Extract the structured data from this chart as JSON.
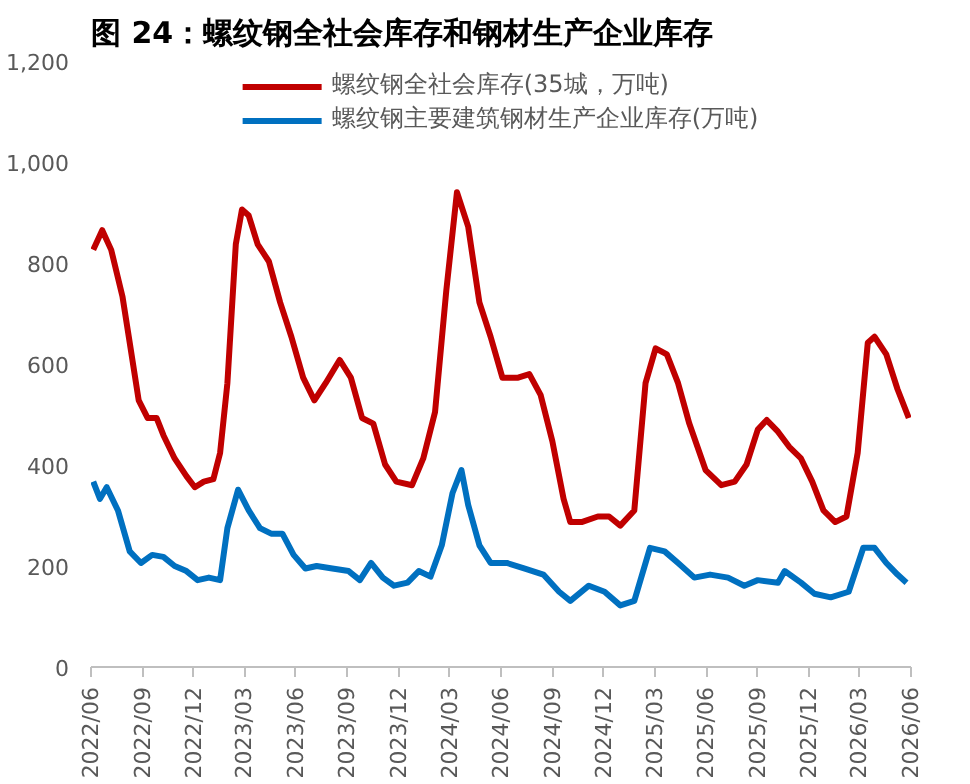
{
  "chart_data": {
    "type": "line",
    "title": "图 24：螺纹钢全社会库存和钢材生产企业库存",
    "xlim": [
      "2022-06-01",
      "2026-06-01"
    ],
    "xticks": [
      {
        "value": "2022-06-01",
        "label": "2022/06"
      },
      {
        "value": "2022-09-01",
        "label": "2022/09"
      },
      {
        "value": "2022-12-01",
        "label": "2022/12"
      },
      {
        "value": "2023-03-01",
        "label": "2023/03"
      },
      {
        "value": "2023-06-01",
        "label": "2023/06"
      },
      {
        "value": "2023-09-01",
        "label": "2023/09"
      },
      {
        "value": "2023-12-01",
        "label": "2023/12"
      },
      {
        "value": "2024-03-01",
        "label": "2024/03"
      },
      {
        "value": "2024-06-01",
        "label": "2024/06"
      },
      {
        "value": "2024-09-01",
        "label": "2024/09"
      },
      {
        "value": "2024-12-01",
        "label": "2024/12"
      },
      {
        "value": "2025-03-01",
        "label": "2025/03"
      },
      {
        "value": "2025-06-01",
        "label": "2025/06"
      },
      {
        "value": "2025-09-01",
        "label": "2025/09"
      },
      {
        "value": "2025-12-01",
        "label": "2025/12"
      },
      {
        "value": "2026-03-01",
        "label": "2026/03"
      },
      {
        "value": "2026-06-01",
        "label": "2026/06"
      }
    ],
    "ylim": [
      0,
      1200
    ],
    "yticks": [
      0,
      200,
      400,
      600,
      800,
      {
        "value": 1000,
        "label": "1,000"
      },
      {
        "value": 1200,
        "label": "1,200"
      }
    ],
    "grid": false,
    "legend": "top",
    "line_style": "solid",
    "marker": "none",
    "series": [
      {
        "name": "螺纹钢全社会库存(35城，万吨)",
        "color": "#c00000",
        "x": [
          "2022-06-05",
          "2022-06-21",
          "2022-07-07",
          "2022-07-27",
          "2022-08-09",
          "2022-08-25",
          "2022-09-10",
          "2022-09-26",
          "2022-10-08",
          "2022-10-28",
          "2022-11-18",
          "2022-12-03",
          "2022-12-19",
          "2023-01-05",
          "2023-01-17",
          "2023-01-30",
          "2023-02-14",
          "2023-02-25",
          "2023-03-09",
          "2023-03-25",
          "2023-04-14",
          "2023-05-04",
          "2023-05-24",
          "2023-06-14",
          "2023-07-04",
          "2023-07-24",
          "2023-08-18",
          "2023-09-07",
          "2023-09-27",
          "2023-10-17",
          "2023-11-07",
          "2023-11-27",
          "2023-12-25",
          "2024-01-14",
          "2024-02-04",
          "2024-02-24",
          "2024-03-14",
          "2024-04-03",
          "2024-04-23",
          "2024-05-13",
          "2024-06-03",
          "2024-07-01",
          "2024-07-21",
          "2024-08-10",
          "2024-08-31",
          "2024-09-20",
          "2024-10-02",
          "2024-10-22",
          "2024-11-20",
          "2024-12-10",
          "2024-12-30",
          "2025-01-24",
          "2025-02-13",
          "2025-03-03",
          "2025-03-23",
          "2025-04-12",
          "2025-05-02",
          "2025-05-31",
          "2025-06-28",
          "2025-07-22",
          "2025-08-12",
          "2025-09-01",
          "2025-09-17",
          "2025-10-07",
          "2025-10-27",
          "2025-11-17",
          "2025-12-07",
          "2025-12-27",
          "2026-01-17",
          "2026-02-06",
          "2026-02-26",
          "2026-03-16",
          "2026-03-28",
          "2026-04-18",
          "2026-05-08",
          "2026-05-28"
        ],
        "values": [
          826,
          865,
          826,
          734,
          642,
          528,
          493,
          493,
          459,
          413,
          378,
          356,
          367,
          372,
          424,
          562,
          837,
          906,
          894,
          837,
          803,
          722,
          654,
          573,
          528,
          562,
          608,
          573,
          493,
          482,
          401,
          367,
          360,
          413,
          505,
          745,
          940,
          872,
          722,
          654,
          573,
          573,
          580,
          539,
          447,
          333,
          287,
          287,
          298,
          298,
          280,
          310,
          562,
          631,
          619,
          562,
          482,
          390,
          360,
          367,
          401,
          470,
          489,
          466,
          436,
          413,
          367,
          310,
          287,
          298,
          424,
          642,
          654,
          619,
          550,
          493
        ]
      },
      {
        "name": "螺纹钢主要建筑钢材生产企业库存(万吨)",
        "color": "#0070c0",
        "x": [
          "2022-06-05",
          "2022-06-17",
          "2022-06-29",
          "2022-07-19",
          "2022-08-09",
          "2022-08-29",
          "2022-09-18",
          "2022-10-08",
          "2022-10-28",
          "2022-11-18",
          "2022-12-08",
          "2022-12-28",
          "2023-01-17",
          "2023-01-30",
          "2023-02-18",
          "2023-03-09",
          "2023-03-29",
          "2023-04-18",
          "2023-05-08",
          "2023-05-28",
          "2023-06-18",
          "2023-07-08",
          "2023-08-05",
          "2023-09-03",
          "2023-09-23",
          "2023-10-13",
          "2023-11-03",
          "2023-11-23",
          "2023-12-17",
          "2024-01-06",
          "2024-01-27",
          "2024-02-16",
          "2024-03-06",
          "2024-03-22",
          "2024-04-03",
          "2024-04-23",
          "2024-05-13",
          "2024-06-11",
          "2024-07-13",
          "2024-08-15",
          "2024-09-12",
          "2024-10-02",
          "2024-11-04",
          "2024-12-02",
          "2024-12-30",
          "2025-01-24",
          "2025-02-21",
          "2025-03-19",
          "2025-04-12",
          "2025-05-11",
          "2025-06-08",
          "2025-07-10",
          "2025-08-08",
          "2025-09-01",
          "2025-10-07",
          "2025-10-19",
          "2025-11-17",
          "2025-12-11",
          "2026-01-09",
          "2026-02-10",
          "2026-03-08",
          "2026-03-28",
          "2026-04-18",
          "2026-05-08",
          "2026-05-24"
        ],
        "values": [
          367,
          333,
          356,
          310,
          229,
          206,
          222,
          218,
          200,
          190,
          172,
          177,
          172,
          275,
          351,
          310,
          275,
          264,
          264,
          222,
          195,
          200,
          195,
          190,
          172,
          206,
          177,
          161,
          167,
          190,
          179,
          241,
          344,
          390,
          321,
          241,
          206,
          206,
          195,
          183,
          149,
          131,
          161,
          149,
          122,
          131,
          236,
          229,
          206,
          177,
          183,
          177,
          161,
          172,
          167,
          190,
          167,
          145,
          138,
          149,
          236,
          236,
          206,
          183,
          167
        ]
      }
    ]
  }
}
